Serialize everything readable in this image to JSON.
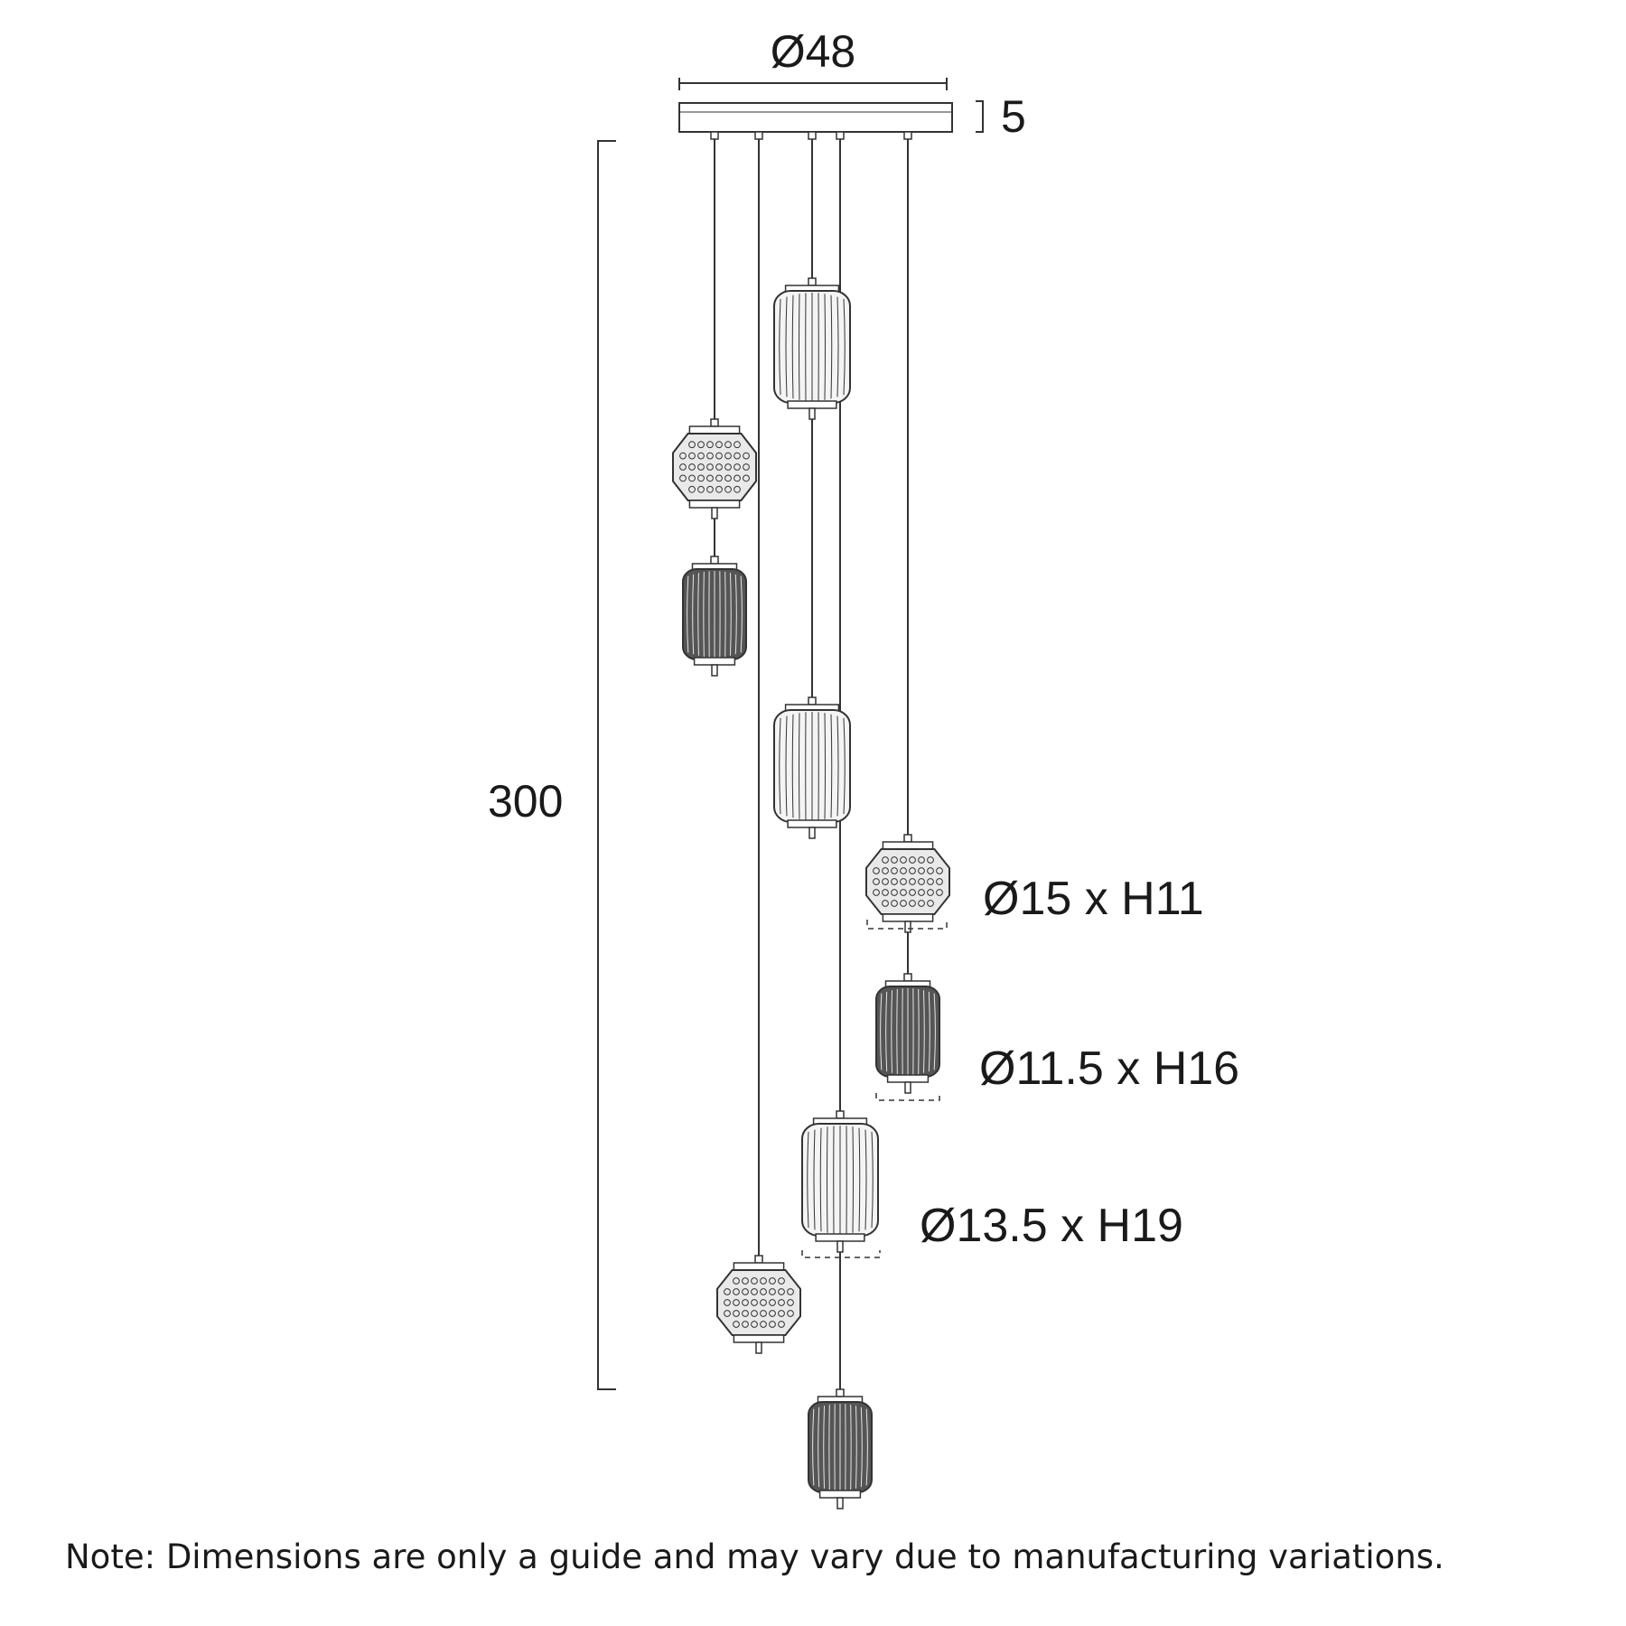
{
  "dimensions": {
    "canopy_diameter": "Ø48",
    "canopy_height": "5",
    "overall_drop": "300",
    "shade_geometric": "Ø15 x H11",
    "shade_small": "Ø11.5 x H16",
    "shade_large": "Ø13.5 x H19"
  },
  "note": "Note: Dimensions are only a guide and may vary due to manufacturing variations.",
  "colors": {
    "line": "#333333",
    "dark_shade_fill": "#555555",
    "light_shade_fill": "#f4f4f4"
  }
}
